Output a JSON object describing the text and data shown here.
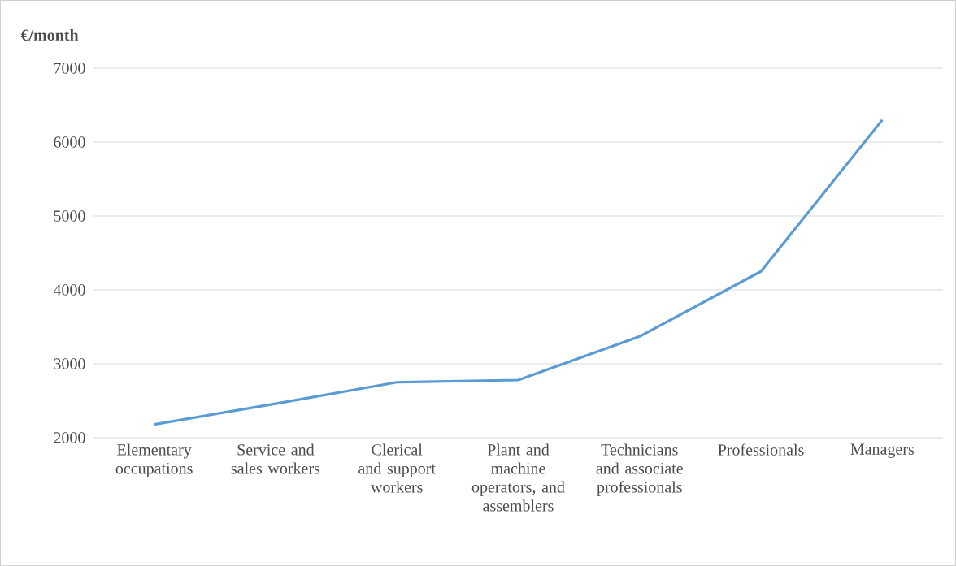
{
  "chart_data": {
    "type": "line",
    "ylabel": "€/month",
    "categories": [
      "Elementary occupations",
      "Service and sales workers",
      "Clerical and support workers",
      "Plant and machine operators, and assemblers",
      "Technicians and associate professionals",
      "Professionals",
      "Managers"
    ],
    "series": [
      {
        "color": "#5b9bd5",
        "values": [
          2180,
          2460,
          2750,
          2780,
          3370,
          4250,
          6300
        ]
      }
    ],
    "ylim": [
      2000,
      7000
    ],
    "yticks": [
      2000,
      3000,
      4000,
      5000,
      6000,
      7000
    ],
    "grid": "y",
    "marker": "none",
    "line_style": "solid"
  }
}
